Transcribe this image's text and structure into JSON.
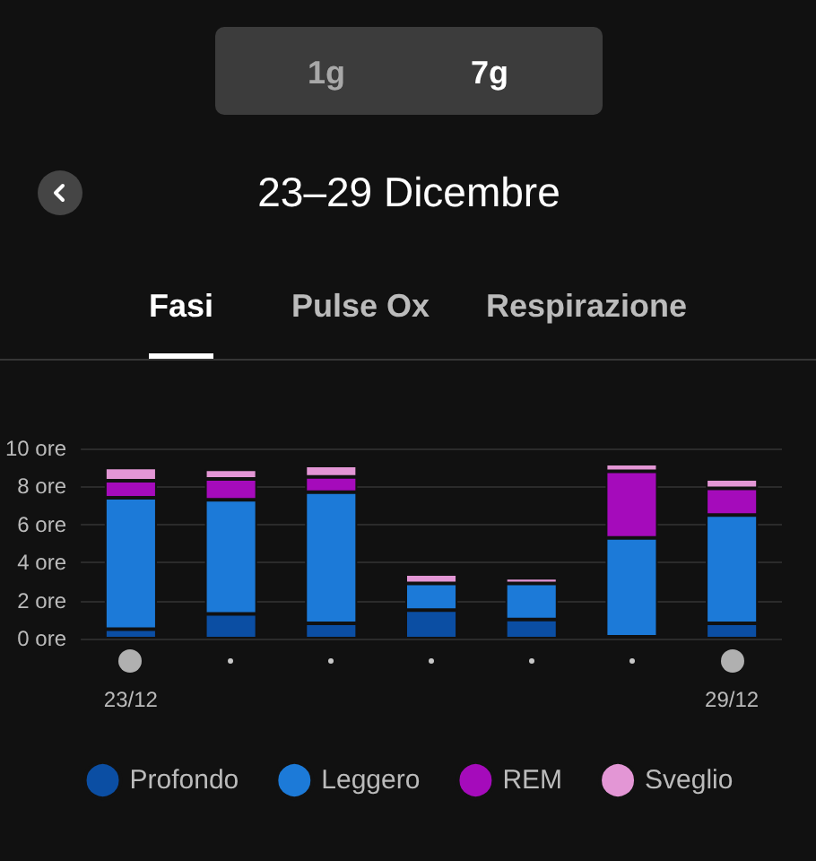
{
  "chart_data": {
    "type": "bar",
    "title": "23–29 Dicembre",
    "annotations": [
      "1g",
      "7g",
      "Fasi",
      "Pulse Ox",
      "Respirazione"
    ],
    "categories": [
      "23/12",
      null,
      null,
      null,
      null,
      null,
      "29/12"
    ],
    "stacked": true,
    "series": [
      {
        "name": "Profondo",
        "color": "#0b4ea3",
        "values": [
          0.5,
          1.3,
          0.8,
          1.5,
          1.0,
          0.1,
          0.8
        ]
      },
      {
        "name": "Leggero",
        "color": "#1c7ad8",
        "values": [
          6.9,
          6.0,
          6.9,
          1.4,
          1.9,
          5.2,
          5.7
        ]
      },
      {
        "name": "REM",
        "color": "#a50bbb",
        "values": [
          0.9,
          1.1,
          0.8,
          0,
          0,
          3.5,
          1.4
        ]
      },
      {
        "name": "Sveglio",
        "color": "#e396d5",
        "values": [
          0.7,
          0.5,
          0.6,
          0.5,
          0.3,
          0.4,
          0.5
        ]
      }
    ],
    "ylim": [
      0,
      10
    ],
    "yticks": [
      {
        "value": 0,
        "label": "0 ore"
      },
      {
        "value": 2,
        "label": "2 ore"
      },
      {
        "value": 4,
        "label": "4 ore"
      },
      {
        "value": 6,
        "label": "6 ore"
      },
      {
        "value": 8,
        "label": "8 ore"
      },
      {
        "value": 10,
        "label": "10 ore"
      }
    ],
    "grid": "y",
    "legend": "bottom"
  }
}
